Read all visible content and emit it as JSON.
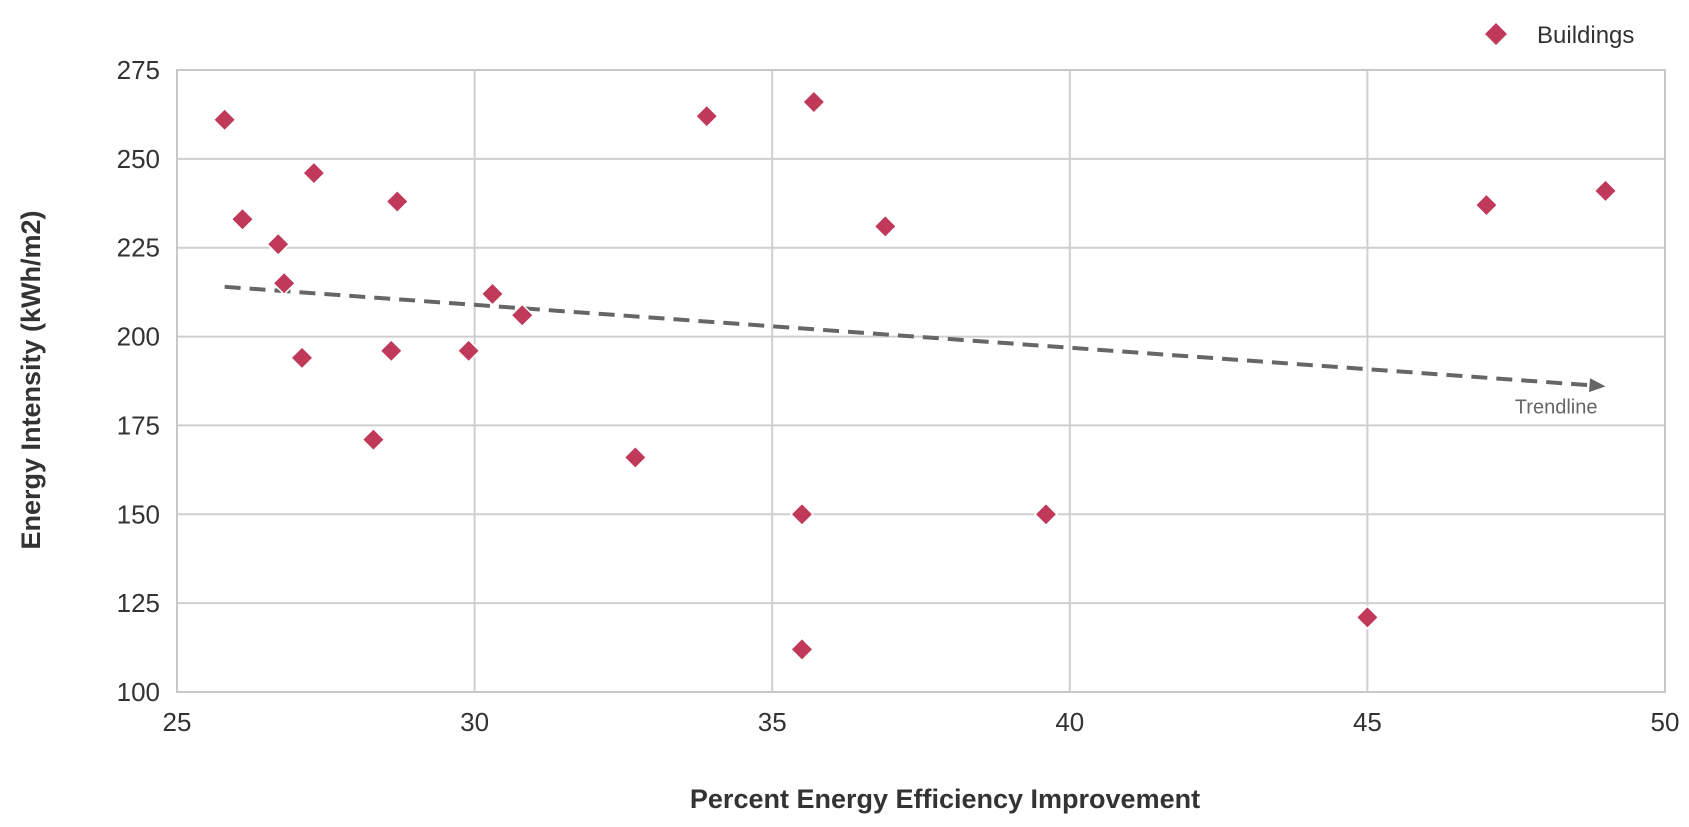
{
  "chart_data": {
    "type": "scatter",
    "xlabel": "Percent Energy Efficiency Improvement",
    "ylabel": "Energy Intensity (kWh/m2)",
    "xlim": [
      25,
      50
    ],
    "ylim": [
      100,
      275
    ],
    "x_ticks": [
      "25",
      "30",
      "35",
      "40",
      "45",
      "50"
    ],
    "y_ticks": [
      "275",
      "250",
      "225",
      "200",
      "175",
      "150",
      "125",
      "100"
    ],
    "grid": true,
    "legend_position": "top-right",
    "series": [
      {
        "name": "Buildings",
        "color": "#c0395a",
        "marker": "diamond",
        "points": [
          {
            "x": 25.8,
            "y": 261
          },
          {
            "x": 26.1,
            "y": 233
          },
          {
            "x": 26.7,
            "y": 226
          },
          {
            "x": 26.8,
            "y": 215
          },
          {
            "x": 27.1,
            "y": 194
          },
          {
            "x": 27.3,
            "y": 246
          },
          {
            "x": 28.3,
            "y": 171
          },
          {
            "x": 28.6,
            "y": 196
          },
          {
            "x": 28.7,
            "y": 238
          },
          {
            "x": 29.9,
            "y": 196
          },
          {
            "x": 30.3,
            "y": 212
          },
          {
            "x": 30.8,
            "y": 206
          },
          {
            "x": 32.7,
            "y": 166
          },
          {
            "x": 33.9,
            "y": 262
          },
          {
            "x": 35.5,
            "y": 150
          },
          {
            "x": 35.5,
            "y": 112
          },
          {
            "x": 35.7,
            "y": 266
          },
          {
            "x": 36.9,
            "y": 231
          },
          {
            "x": 39.6,
            "y": 150
          },
          {
            "x": 45.0,
            "y": 121
          },
          {
            "x": 47.0,
            "y": 237
          },
          {
            "x": 49.0,
            "y": 241
          }
        ]
      }
    ],
    "trendline": {
      "label": "Trendline",
      "color": "#666666",
      "style": "dashed-arrow",
      "start": {
        "x": 25.8,
        "y": 214
      },
      "end": {
        "x": 49.0,
        "y": 186
      }
    }
  }
}
